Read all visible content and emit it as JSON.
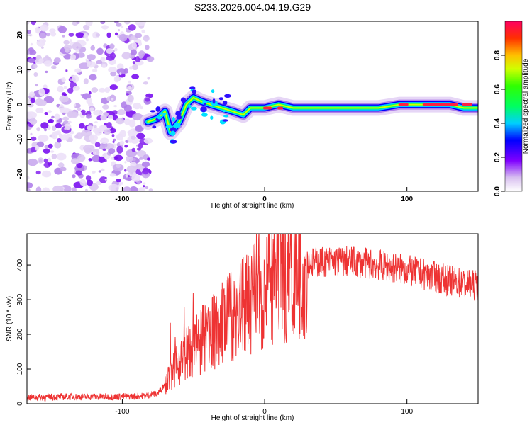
{
  "title": "S233.2026.004.04.19.G29",
  "chart_data": [
    {
      "type": "heatmap",
      "xlabel": "Height of straight line (km)",
      "ylabel": "Frequency (Hz)",
      "xlim": [
        -167,
        150
      ],
      "ylim": [
        -25,
        24
      ],
      "xticks": [
        -100,
        0,
        100
      ],
      "yticks": [
        -20,
        -10,
        0,
        10,
        20
      ],
      "noise_region_x": [
        -167,
        -80
      ],
      "signal_ridge": [
        {
          "x": -82,
          "y": -5
        },
        {
          "x": -75,
          "y": -4
        },
        {
          "x": -70,
          "y": -2
        },
        {
          "x": -66,
          "y": -8
        },
        {
          "x": -60,
          "y": -5
        },
        {
          "x": -55,
          "y": 0
        },
        {
          "x": -50,
          "y": 2
        },
        {
          "x": -45,
          "y": 1
        },
        {
          "x": -38,
          "y": 0
        },
        {
          "x": -30,
          "y": -1
        },
        {
          "x": -22,
          "y": -2
        },
        {
          "x": -15,
          "y": -3
        },
        {
          "x": -10,
          "y": -1
        },
        {
          "x": 0,
          "y": -1
        },
        {
          "x": 10,
          "y": 0
        },
        {
          "x": 20,
          "y": -1
        },
        {
          "x": 40,
          "y": -1
        },
        {
          "x": 60,
          "y": -1
        },
        {
          "x": 80,
          "y": -1
        },
        {
          "x": 95,
          "y": 0
        },
        {
          "x": 110,
          "y": 0
        },
        {
          "x": 130,
          "y": 0
        },
        {
          "x": 140,
          "y": -1
        },
        {
          "x": 150,
          "y": -1
        }
      ],
      "colorbar": {
        "label": "Normalized spectral amplitude",
        "range": [
          0,
          1
        ],
        "ticks": [
          "0.0",
          "0.2",
          "0.4",
          "0.6",
          "0.8"
        ]
      }
    },
    {
      "type": "line",
      "xlabel": "Height of straight line (km)",
      "ylabel": "SNR (10 * v/v)",
      "xlim": [
        -167,
        150
      ],
      "ylim": [
        0,
        490
      ],
      "xticks": [
        -100,
        0,
        100
      ],
      "yticks": [
        0,
        100,
        200,
        300,
        400
      ],
      "color": "#ee3333",
      "series": [
        {
          "name": "SNR",
          "x": [
            -167,
            -140,
            -110,
            -85,
            -75,
            -68,
            -60,
            -50,
            -40,
            -30,
            -20,
            -10,
            0,
            10,
            20,
            30,
            40,
            60,
            80,
            100,
            120,
            140,
            150
          ],
          "values": [
            18,
            20,
            20,
            22,
            30,
            70,
            120,
            160,
            190,
            230,
            260,
            300,
            340,
            370,
            390,
            405,
            410,
            410,
            400,
            385,
            365,
            345,
            340
          ]
        }
      ]
    }
  ]
}
